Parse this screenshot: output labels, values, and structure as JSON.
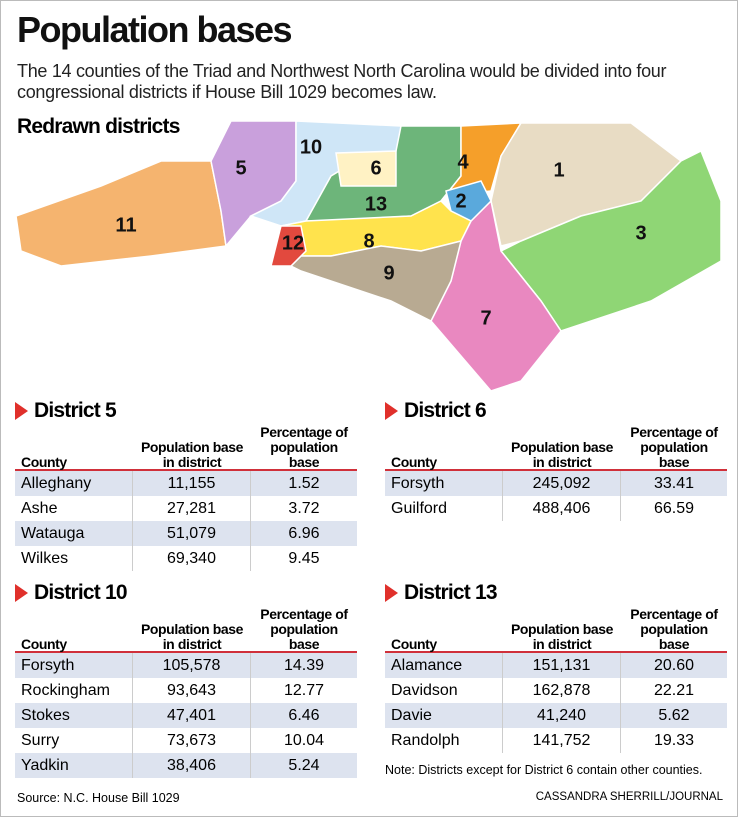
{
  "header": {
    "title": "Population bases",
    "subtitle": "The 14 counties of the Triad and Northwest North Carolina would be divided into four congressional districts if House Bill 1029 becomes law."
  },
  "map": {
    "title": "Redrawn districts",
    "districts": [
      "1",
      "2",
      "3",
      "4",
      "5",
      "6",
      "7",
      "8",
      "9",
      "10",
      "11",
      "12",
      "13"
    ]
  },
  "tables": [
    {
      "title": "District 5",
      "columns": [
        "County",
        "Population base in district",
        "Percentage of population base"
      ],
      "rows": [
        [
          "Alleghany",
          "11,155",
          "1.52"
        ],
        [
          "Ashe",
          "27,281",
          "3.72"
        ],
        [
          "Watauga",
          "51,079",
          "6.96"
        ],
        [
          "Wilkes",
          "69,340",
          "9.45"
        ]
      ]
    },
    {
      "title": "District 6",
      "columns": [
        "County",
        "Population base in district",
        "Percentage of population base"
      ],
      "rows": [
        [
          "Forsyth",
          "245,092",
          "33.41"
        ],
        [
          "Guilford",
          "488,406",
          "66.59"
        ]
      ]
    },
    {
      "title": "District 10",
      "columns": [
        "County",
        "Population base in district",
        "Percentage of population base"
      ],
      "rows": [
        [
          "Forsyth",
          "105,578",
          "14.39"
        ],
        [
          "Rockingham",
          "93,643",
          "12.77"
        ],
        [
          "Stokes",
          "47,401",
          "6.46"
        ],
        [
          "Surry",
          "73,673",
          "10.04"
        ],
        [
          "Yadkin",
          "38,406",
          "5.24"
        ]
      ]
    },
    {
      "title": "District 13",
      "columns": [
        "County",
        "Population base in district",
        "Percentage of population base"
      ],
      "rows": [
        [
          "Alamance",
          "151,131",
          "20.60"
        ],
        [
          "Davidson",
          "162,878",
          "22.21"
        ],
        [
          "Davie",
          "41,240",
          "5.62"
        ],
        [
          "Randolph",
          "141,752",
          "19.33"
        ]
      ]
    }
  ],
  "note": "Note: Districts except for District 6 contain other counties.",
  "source": "Source: N.C. House Bill 1029",
  "credit": "CASSANDRA SHERRILL/JOURNAL"
}
